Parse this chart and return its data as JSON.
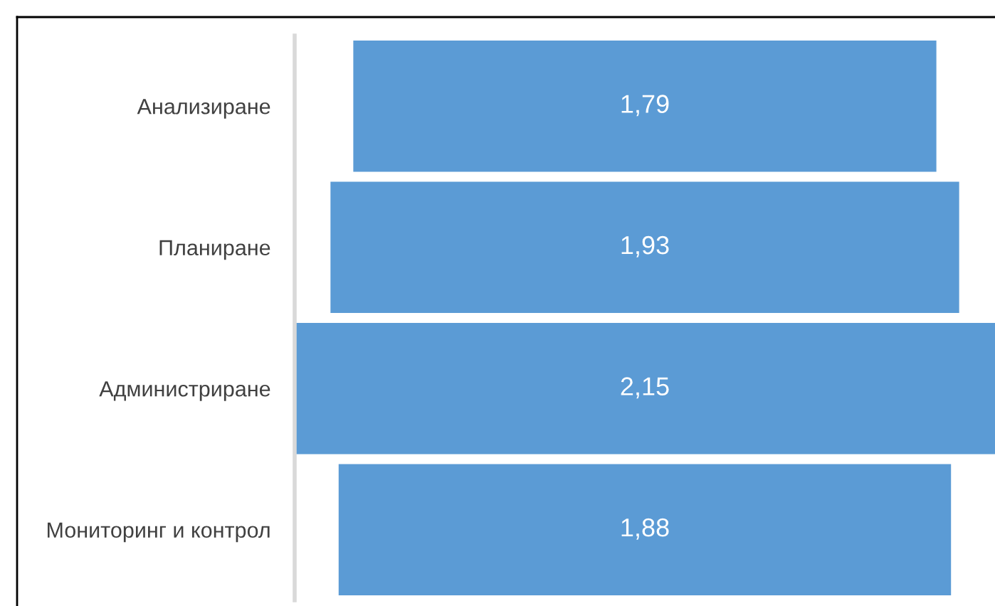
{
  "chart_data": {
    "type": "other",
    "categories": [
      "Анализиране",
      "Планиране",
      "Администриране",
      "Мониторинг и контрол"
    ],
    "values": [
      1.79,
      1.93,
      2.15,
      1.88
    ],
    "value_labels": [
      "1,79",
      "1,93",
      "2,15",
      "1,88"
    ],
    "color": "#5b9bd5"
  }
}
